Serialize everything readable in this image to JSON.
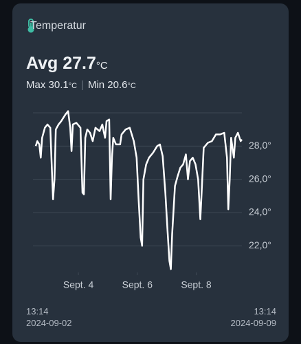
{
  "header": {
    "title": "Temperatur",
    "avg_label": "Avg 27.7",
    "avg_unit": "°C",
    "max_label": "Max 30.1",
    "max_unit": "°C",
    "min_label": "Min 20.6",
    "min_unit": "°C"
  },
  "footer": {
    "start_time": "13:14",
    "start_date": "2024-09-02",
    "end_time": "13:14",
    "end_date": "2024-09-09"
  },
  "chart_data": {
    "type": "line",
    "x": [
      "2024-09-02T13:14",
      "2024-09-02T14:30",
      "2024-09-02T16:10",
      "2024-09-02T17:20",
      "2024-09-02T18:25",
      "2024-09-02T20:40",
      "2024-09-02T22:50",
      "2024-09-03T01:05",
      "2024-09-03T02:15",
      "2024-09-03T03:20",
      "2024-09-03T04:30",
      "2024-09-03T05:35",
      "2024-09-03T07:50",
      "2024-09-03T10:00",
      "2024-09-03T13:25",
      "2024-09-03T15:35",
      "2024-09-03T17:20",
      "2024-09-03T18:25",
      "2024-09-03T19:30",
      "2024-09-03T22:20",
      "2024-09-04T01:40",
      "2024-09-04T03:20",
      "2024-09-04T04:30",
      "2024-09-04T05:35",
      "2024-09-04T07:15",
      "2024-09-04T09:30",
      "2024-09-04T11:40",
      "2024-09-04T13:55",
      "2024-09-04T17:15",
      "2024-09-04T19:30",
      "2024-09-04T20:35",
      "2024-09-04T21:45",
      "2024-09-04T22:55",
      "2024-09-05T01:05",
      "2024-09-05T02:15",
      "2024-09-05T03:20",
      "2024-09-05T04:25",
      "2024-09-05T06:40",
      "2024-09-05T10:00",
      "2024-09-05T11:10",
      "2024-09-05T14:30",
      "2024-09-05T17:50",
      "2024-09-05T21:10",
      "2024-09-05T23:25",
      "2024-09-06T01:05",
      "2024-09-06T02:45",
      "2024-09-06T03:55",
      "2024-09-06T05:00",
      "2024-09-06T07:15",
      "2024-09-06T09:30",
      "2024-09-06T12:50",
      "2024-09-06T16:10",
      "2024-09-06T18:25",
      "2024-09-06T20:40",
      "2024-09-06T22:50",
      "2024-09-07T00:30",
      "2024-09-07T02:10",
      "2024-09-07T03:20",
      "2024-09-07T04:25",
      "2024-09-07T06:40",
      "2024-09-07T08:55",
      "2024-09-07T11:05",
      "2024-09-07T13:20",
      "2024-09-07T15:35",
      "2024-09-07T17:15",
      "2024-09-07T18:55",
      "2024-09-07T21:10",
      "2024-09-07T23:25",
      "2024-09-08T01:35",
      "2024-09-08T03:20",
      "2024-09-08T04:25",
      "2024-09-08T06:05",
      "2024-09-08T09:30",
      "2024-09-08T12:50",
      "2024-09-08T16:05",
      "2024-09-08T19:30",
      "2024-09-08T22:50",
      "2024-09-09T01:05",
      "2024-09-09T02:10",
      "2024-09-09T03:20",
      "2024-09-09T04:25",
      "2024-09-09T06:40",
      "2024-09-09T07:50",
      "2024-09-09T10:00",
      "2024-09-09T12:15",
      "2024-09-09T13:14"
    ],
    "values": [
      28.0,
      28.3,
      28.1,
      27.3,
      28.5,
      29.1,
      29.3,
      29.1,
      26.9,
      24.8,
      26.0,
      29.0,
      29.3,
      29.5,
      29.9,
      30.1,
      29.1,
      27.7,
      29.3,
      29.4,
      29.1,
      25.2,
      25.1,
      28.5,
      29.0,
      28.8,
      28.3,
      29.1,
      28.9,
      29.3,
      28.9,
      28.5,
      29.5,
      29.6,
      24.8,
      27.3,
      28.5,
      28.1,
      28.1,
      28.7,
      29.0,
      29.1,
      28.3,
      27.3,
      24.8,
      22.5,
      22.0,
      26.0,
      26.9,
      27.3,
      27.6,
      28.0,
      28.1,
      27.4,
      25.2,
      23.1,
      21.1,
      20.6,
      22.7,
      25.6,
      26.2,
      26.7,
      26.9,
      27.5,
      26.0,
      27.1,
      27.3,
      26.9,
      26.0,
      23.6,
      25.2,
      27.9,
      28.2,
      28.3,
      28.7,
      28.7,
      28.8,
      27.3,
      24.2,
      26.0,
      28.5,
      27.3,
      28.5,
      28.8,
      28.3,
      28.4
    ],
    "color": "#ffffff",
    "xlim": [
      "2024-09-02T13:14",
      "2024-09-09T13:14"
    ],
    "xticks": [
      {
        "value": "2024-09-04T00:00",
        "label": "Sept. 4"
      },
      {
        "value": "2024-09-06T00:00",
        "label": "Sept. 6"
      },
      {
        "value": "2024-09-08T00:00",
        "label": "Sept. 8"
      }
    ],
    "ylim": [
      20.4,
      30
    ],
    "yticks": [
      {
        "value": 22,
        "label": "22,0°"
      },
      {
        "value": 24,
        "label": "24,0°"
      },
      {
        "value": 26,
        "label": "26,0°"
      },
      {
        "value": 28,
        "label": "28,0°"
      }
    ],
    "grid": true
  }
}
